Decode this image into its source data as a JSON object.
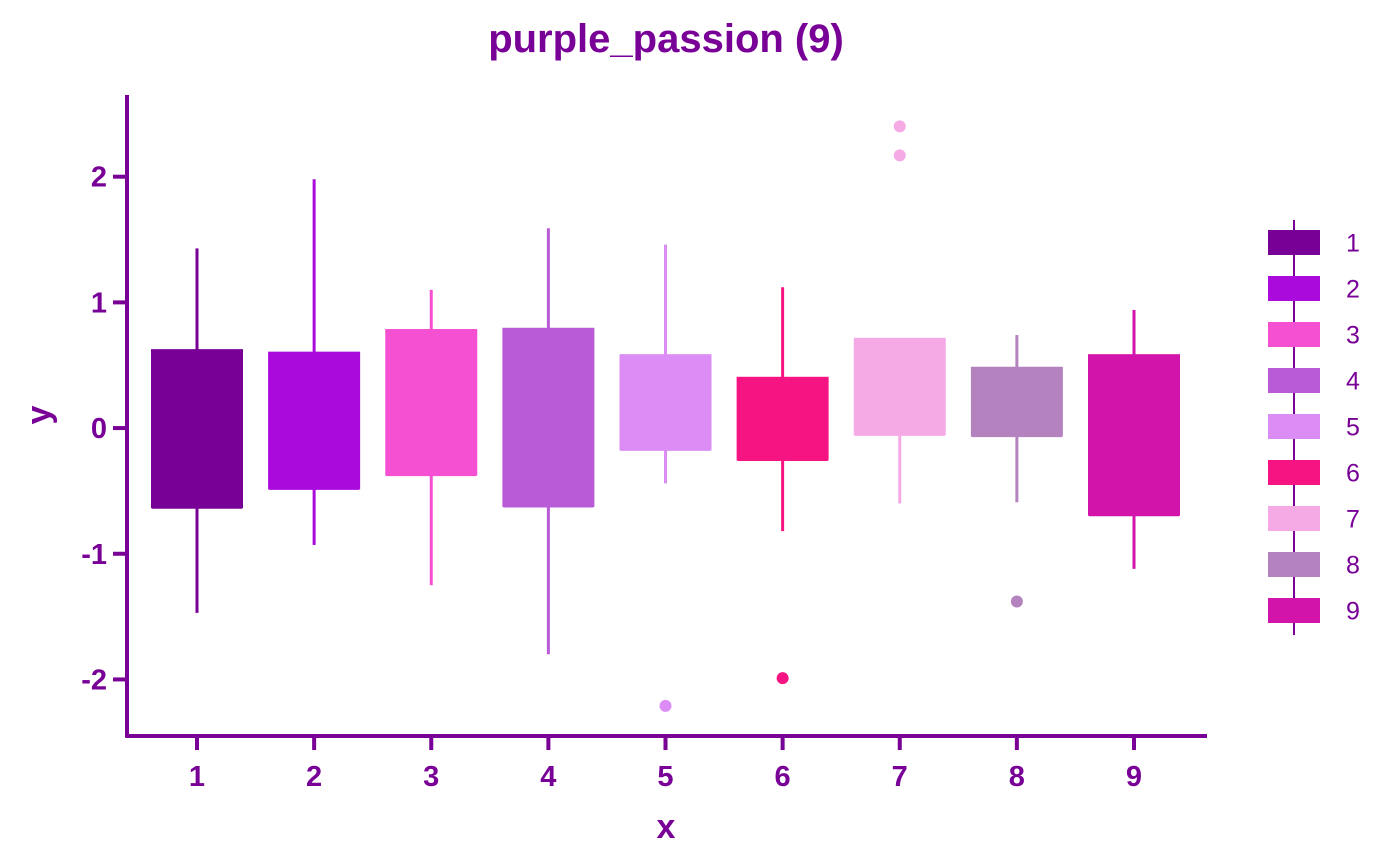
{
  "chart_data": {
    "type": "box",
    "title": "purple_passion (9)",
    "xlabel": "x",
    "ylabel": "y",
    "ylim": [
      -2.45,
      2.65
    ],
    "y_ticks": [
      -2,
      -1,
      0,
      1,
      2
    ],
    "y_tick_labels": [
      "-2",
      "-1",
      "0",
      "1",
      "2"
    ],
    "categories": [
      "1",
      "2",
      "3",
      "4",
      "5",
      "6",
      "7",
      "8",
      "9"
    ],
    "legend_position": "right",
    "series": [
      {
        "name": "1",
        "color": "#780096",
        "whisker_low": -1.47,
        "q1": -0.63,
        "median": -0.63,
        "q3": 0.62,
        "whisker_high": 1.43,
        "outliers": []
      },
      {
        "name": "2",
        "color": "#AA0ADC",
        "whisker_low": -0.93,
        "q1": -0.48,
        "median": -0.48,
        "q3": 0.6,
        "whisker_high": 1.98,
        "outliers": []
      },
      {
        "name": "3",
        "color": "#F550D2",
        "whisker_low": -1.25,
        "q1": -0.37,
        "median": -0.37,
        "q3": 0.78,
        "whisker_high": 1.1,
        "outliers": []
      },
      {
        "name": "4",
        "color": "#B95AD7",
        "whisker_low": -1.8,
        "q1": -0.62,
        "median": -0.62,
        "q3": 0.79,
        "whisker_high": 1.59,
        "outliers": []
      },
      {
        "name": "5",
        "color": "#DC8CF5",
        "whisker_low": -0.44,
        "q1": -0.17,
        "median": -0.17,
        "q3": 0.58,
        "whisker_high": 1.46,
        "outliers": [
          -2.21
        ]
      },
      {
        "name": "6",
        "color": "#F51482",
        "whisker_low": -0.82,
        "q1": -0.25,
        "median": -0.25,
        "q3": 0.4,
        "whisker_high": 1.12,
        "outliers": [
          -1.99
        ]
      },
      {
        "name": "7",
        "color": "#F5AAE6",
        "whisker_low": -0.6,
        "q1": -0.05,
        "median": -0.05,
        "q3": 0.71,
        "whisker_high": 0.71,
        "outliers": [
          2.17,
          2.4
        ]
      },
      {
        "name": "8",
        "color": "#B482BE",
        "whisker_low": -0.59,
        "q1": -0.06,
        "median": -0.06,
        "q3": 0.48,
        "whisker_high": 0.74,
        "outliers": [
          -1.38
        ]
      },
      {
        "name": "9",
        "color": "#D214AA",
        "whisker_low": -1.12,
        "q1": -0.69,
        "median": -0.69,
        "q3": 0.58,
        "whisker_high": 0.94,
        "outliers": []
      }
    ]
  },
  "style": {
    "axis_color": "#780096",
    "text_color": "#780096",
    "background": "#FFFFFF"
  }
}
